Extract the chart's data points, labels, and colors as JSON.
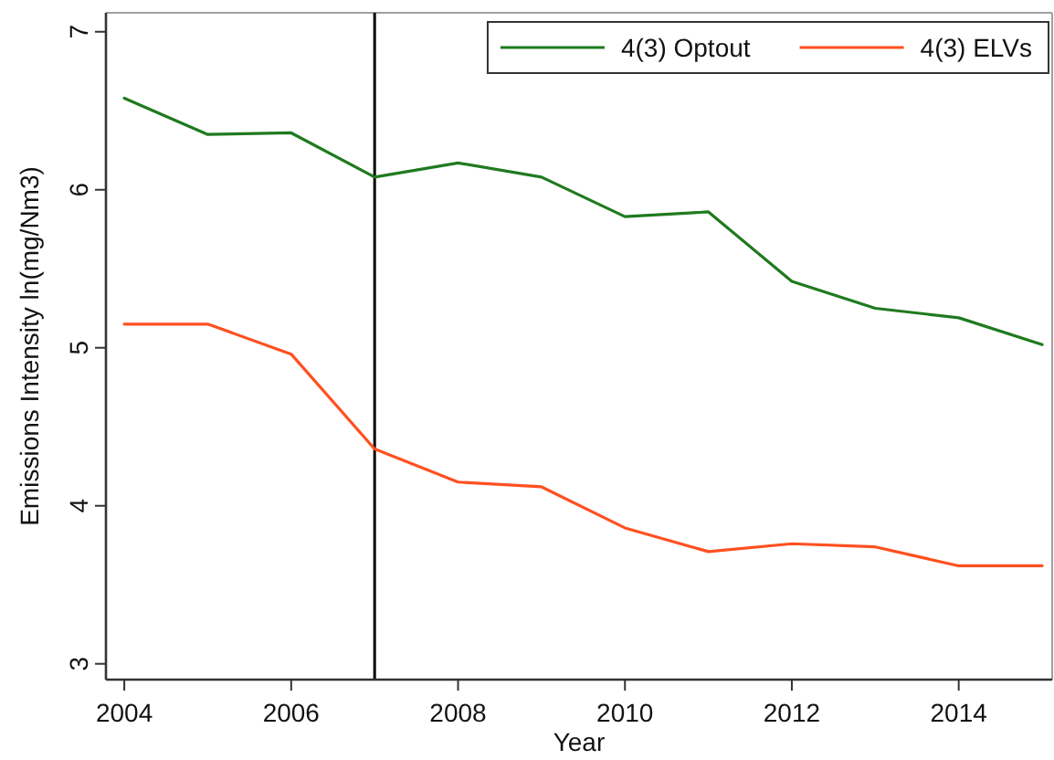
{
  "chart_data": {
    "type": "line",
    "xlabel": "Year",
    "ylabel": "Emissions Intensity ln(mg/Nm3)",
    "x": [
      2004,
      2005,
      2006,
      2007,
      2008,
      2009,
      2010,
      2011,
      2012,
      2013,
      2014,
      2015
    ],
    "series": [
      {
        "name": "4(3) Optout",
        "color": "#1f7a1f",
        "values": [
          6.58,
          6.35,
          6.36,
          6.08,
          6.17,
          6.08,
          5.83,
          5.86,
          5.42,
          5.25,
          5.19,
          5.02
        ]
      },
      {
        "name": "4(3) ELVs",
        "color": "#ff5020",
        "values": [
          5.15,
          5.15,
          4.96,
          4.36,
          4.15,
          4.12,
          3.86,
          3.71,
          3.76,
          3.74,
          3.62,
          3.62
        ]
      }
    ],
    "xlim": [
      2003.78,
      2015.12
    ],
    "ylim": [
      2.9,
      7.12
    ],
    "xticks": [
      2004,
      2006,
      2008,
      2010,
      2012,
      2014
    ],
    "yticks": [
      3,
      4,
      5,
      6,
      7
    ],
    "ref_lines": [
      {
        "axis": "x",
        "value": 2007,
        "color": "#000000"
      }
    ],
    "legend": "top right",
    "line_style": "solid"
  }
}
